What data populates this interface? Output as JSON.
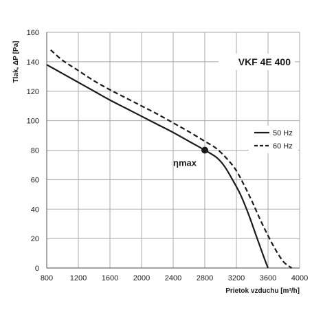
{
  "chart_data": {
    "type": "line",
    "title": "VKF 4E 400",
    "xlabel": "Prietok vzduchu  [m³/h]",
    "ylabel": "Tlak, ΔP [Pa]",
    "xlim": [
      800,
      4000
    ],
    "ylim": [
      0,
      160
    ],
    "x_ticks": [
      800,
      1200,
      1600,
      2000,
      2400,
      2800,
      3200,
      3600,
      4000
    ],
    "y_ticks": [
      0,
      20,
      40,
      60,
      80,
      100,
      120,
      140,
      160
    ],
    "grid": true,
    "legend_position": "right",
    "series": [
      {
        "name": "50 Hz",
        "style": "solid",
        "points": [
          [
            800,
            138
          ],
          [
            1000,
            132
          ],
          [
            1200,
            126
          ],
          [
            1400,
            120
          ],
          [
            1600,
            114
          ],
          [
            1800,
            108.5
          ],
          [
            2000,
            103
          ],
          [
            2200,
            97.5
          ],
          [
            2400,
            92
          ],
          [
            2600,
            86
          ],
          [
            2800,
            80
          ],
          [
            2950,
            75
          ],
          [
            3050,
            69
          ],
          [
            3150,
            60
          ],
          [
            3250,
            50
          ],
          [
            3350,
            37
          ],
          [
            3450,
            22
          ],
          [
            3550,
            7
          ],
          [
            3600,
            0
          ]
        ]
      },
      {
        "name": "60 Hz",
        "style": "dashed",
        "points": [
          [
            850,
            148
          ],
          [
            1000,
            141
          ],
          [
            1200,
            134
          ],
          [
            1400,
            127
          ],
          [
            1600,
            121
          ],
          [
            1800,
            115.5
          ],
          [
            2000,
            110
          ],
          [
            2200,
            104.5
          ],
          [
            2400,
            98.5
          ],
          [
            2600,
            92.5
          ],
          [
            2800,
            86
          ],
          [
            2950,
            81
          ],
          [
            3100,
            73
          ],
          [
            3200,
            66
          ],
          [
            3300,
            56
          ],
          [
            3400,
            45
          ],
          [
            3500,
            33
          ],
          [
            3600,
            22
          ],
          [
            3700,
            12
          ],
          [
            3800,
            4
          ],
          [
            3900,
            0
          ]
        ]
      }
    ],
    "annotations": [
      {
        "label": "ηmax",
        "x": 2800,
        "y": 80
      }
    ]
  },
  "colors": {
    "line": "#1a1a1a",
    "grid": "#a8a8a8",
    "axis": "#6e6e6e",
    "background": "#ffffff"
  }
}
